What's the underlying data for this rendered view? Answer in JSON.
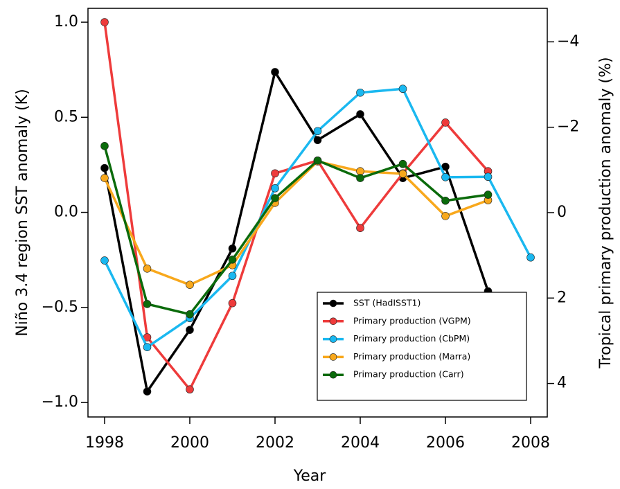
{
  "chart_data": {
    "type": "line",
    "x_label": "Year",
    "y_label": "Niño 3.4 region SST anomaly (K)",
    "y2_label": "Tropical primary production anomaly (%)",
    "x": [
      1998,
      1999,
      2000,
      2001,
      2002,
      2003,
      2004,
      2005,
      2006,
      2007,
      2008
    ],
    "xlim": [
      1997.61,
      2008.39
    ],
    "xticks": [
      1998,
      2000,
      2002,
      2004,
      2006,
      2008
    ],
    "ylim": [
      -1.076,
      1.073
    ],
    "yticks": [
      {
        "value": -1.0,
        "label": "−1.0"
      },
      {
        "value": -0.5,
        "label": "−0.5"
      },
      {
        "value": 0.0,
        "label": "0.0"
      },
      {
        "value": 0.5,
        "label": "0.5"
      },
      {
        "value": 1.0,
        "label": "1.0"
      }
    ],
    "y2lim": [
      4.785,
      -4.785
    ],
    "y2ticks": [
      {
        "value": 4,
        "label": "4"
      },
      {
        "value": 2,
        "label": "2"
      },
      {
        "value": 0,
        "label": "0"
      },
      {
        "value": -2,
        "label": "−2"
      },
      {
        "value": -4,
        "label": "−4"
      }
    ],
    "legend": "lower right",
    "series": [
      {
        "name": "SST (HadISST1)",
        "color": "#000000",
        "values": [
          0.233,
          -0.942,
          -0.618,
          -0.19,
          0.738,
          0.38,
          0.516,
          0.18,
          0.24,
          -0.415,
          null
        ]
      },
      {
        "name": "Primary production (VGPM)",
        "color": "#ee3b3b",
        "axis": "y2",
        "values": [
          -4.46,
          2.92,
          4.14,
          2.12,
          -0.92,
          -1.22,
          0.36,
          -0.92,
          -2.11,
          -0.97,
          null
        ]
      },
      {
        "name": "Primary production (CbPM)",
        "color": "#1ab8f0",
        "axis": "y2",
        "values": [
          1.12,
          3.15,
          2.47,
          1.48,
          -0.57,
          -1.91,
          -2.81,
          -2.9,
          -0.83,
          -0.84,
          1.05
        ]
      },
      {
        "name": "Primary production (Marra)",
        "color": "#f8a81c",
        "axis": "y2",
        "values": [
          -0.81,
          1.31,
          1.69,
          1.23,
          -0.23,
          -1.2,
          -0.97,
          -0.91,
          0.08,
          -0.29,
          null
        ]
      },
      {
        "name": "Primary production (Carr)",
        "color": "#0b6b0b",
        "axis": "y2",
        "values": [
          -1.56,
          2.14,
          2.38,
          1.1,
          -0.34,
          -1.22,
          -0.81,
          -1.14,
          -0.28,
          -0.42,
          null
        ]
      }
    ]
  }
}
